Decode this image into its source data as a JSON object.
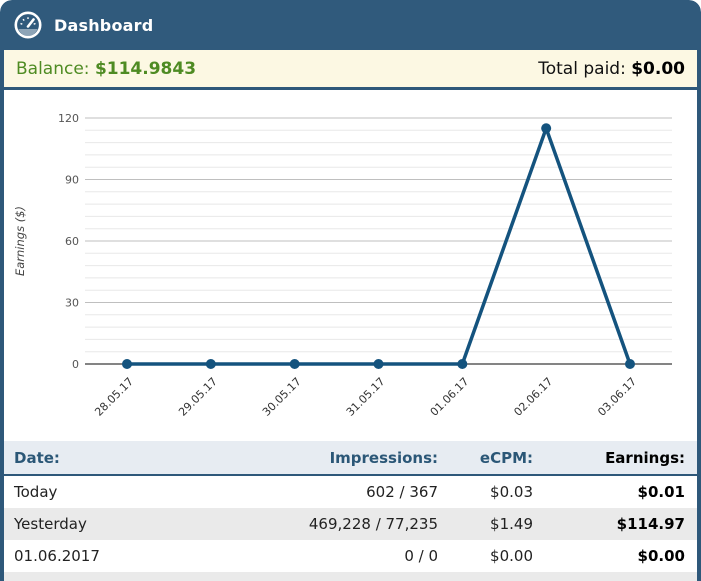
{
  "header": {
    "title": "Dashboard"
  },
  "balance_bar": {
    "balance_label": "Balance:",
    "balance_value": "$114.9843",
    "total_paid_label": "Total paid:",
    "total_paid_value": "$0.00"
  },
  "chart_data": {
    "type": "line",
    "x": [
      "28.05.17",
      "29.05.17",
      "30.05.17",
      "31.05.17",
      "01.06.17",
      "02.06.17",
      "03.06.17"
    ],
    "series": [
      {
        "name": "Earnings",
        "values": [
          0,
          0,
          0,
          0,
          0,
          114.97,
          0
        ]
      }
    ],
    "title": "",
    "xlabel": "",
    "ylabel": "Earnings ($)",
    "yticks": [
      0,
      30,
      60,
      90,
      120
    ],
    "ylim": [
      0,
      120
    ],
    "minor_tick_step": 6,
    "grid": true,
    "legend_position": "none",
    "line_color": "#14537e",
    "marker_color": "#14537e",
    "major_grid_color": "#bfbfbf",
    "minor_grid_color": "#e8e8e8",
    "axis_line_color": "#3a3a3a",
    "tick_label_color": "#555555",
    "axis_title_color": "#444444"
  },
  "table": {
    "headers": [
      "Date:",
      "Impressions:",
      "eCPM:",
      "Earnings:"
    ],
    "rows": [
      {
        "date": "Today",
        "impressions": "602 / 367",
        "ecpm": "$0.03",
        "earnings": "$0.01"
      },
      {
        "date": "Yesterday",
        "impressions": "469,228 / 77,235",
        "ecpm": "$1.49",
        "earnings": "$114.97"
      },
      {
        "date": "01.06.2017",
        "impressions": "0 / 0",
        "ecpm": "$0.00",
        "earnings": "$0.00"
      }
    ]
  },
  "colors": {
    "header_bg": "#305a7c",
    "frame_border": "#2e587a",
    "balance_bg": "#fcf8e3",
    "balance_text": "#4e8b23",
    "table_header_bg": "#e7ecf2",
    "table_header_text": "#2b5777",
    "alt_row_bg": "#eaeaea"
  }
}
